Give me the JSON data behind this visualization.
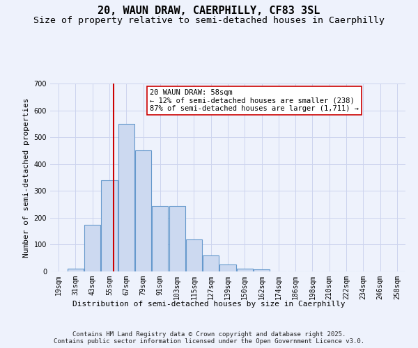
{
  "title": "20, WAUN DRAW, CAERPHILLY, CF83 3SL",
  "subtitle": "Size of property relative to semi-detached houses in Caerphilly",
  "xlabel": "Distribution of semi-detached houses by size in Caerphilly",
  "ylabel": "Number of semi-detached properties",
  "bin_labels": [
    "19sqm",
    "31sqm",
    "43sqm",
    "55sqm",
    "67sqm",
    "79sqm",
    "91sqm",
    "103sqm",
    "115sqm",
    "127sqm",
    "139sqm",
    "150sqm",
    "162sqm",
    "174sqm",
    "186sqm",
    "198sqm",
    "210sqm",
    "222sqm",
    "234sqm",
    "246sqm",
    "258sqm"
  ],
  "bar_values": [
    0,
    10,
    175,
    340,
    550,
    450,
    245,
    245,
    120,
    60,
    25,
    10,
    8,
    0,
    0,
    0,
    0,
    0,
    0,
    0,
    0
  ],
  "bar_color": "#ccd9f0",
  "bar_edge_color": "#6699cc",
  "vline_x_index": 3,
  "vline_color": "#cc0000",
  "annotation_text": "20 WAUN DRAW: 58sqm\n← 12% of semi-detached houses are smaller (238)\n87% of semi-detached houses are larger (1,711) →",
  "annotation_box_color": "#ffffff",
  "annotation_box_edge": "#cc0000",
  "ylim": [
    0,
    700
  ],
  "yticks": [
    0,
    100,
    200,
    300,
    400,
    500,
    600,
    700
  ],
  "footer_line1": "Contains HM Land Registry data © Crown copyright and database right 2025.",
  "footer_line2": "Contains public sector information licensed under the Open Government Licence v3.0.",
  "bg_color": "#eef2fc",
  "grid_color": "#ccd4ee",
  "title_fontsize": 11,
  "subtitle_fontsize": 9.5,
  "axis_label_fontsize": 8,
  "tick_fontsize": 7,
  "annotation_fontsize": 7.5,
  "footer_fontsize": 6.5
}
